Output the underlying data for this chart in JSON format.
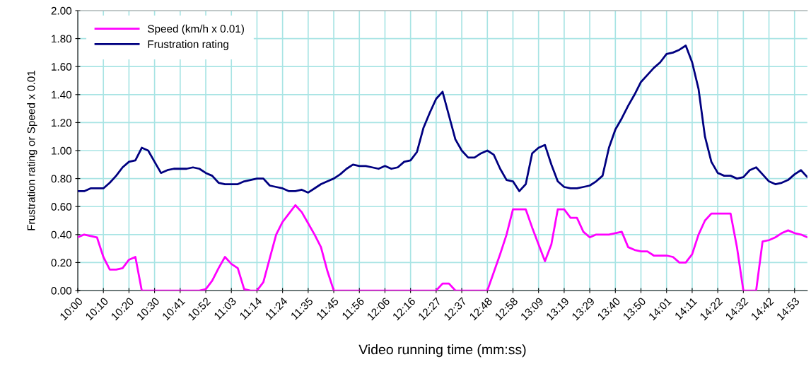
{
  "chart_data": {
    "type": "line",
    "xlabel": "Video running time (mm:ss)",
    "ylabel": "Frustration rating or Speed x 0.01",
    "categories": [
      "10:00",
      null,
      null,
      null,
      "10:10",
      null,
      null,
      null,
      "10:20",
      null,
      null,
      null,
      "10:30",
      null,
      null,
      null,
      "10:41",
      null,
      null,
      null,
      "10:52",
      null,
      null,
      null,
      "11:03",
      null,
      null,
      null,
      "11:14",
      null,
      null,
      null,
      "11:24",
      null,
      null,
      null,
      "11:35",
      null,
      null,
      null,
      "11:45",
      null,
      null,
      null,
      "11:56",
      null,
      null,
      null,
      "12:06",
      null,
      null,
      null,
      "12:16",
      null,
      null,
      null,
      "12:27",
      null,
      null,
      null,
      "12:37",
      null,
      null,
      null,
      "12:48",
      null,
      null,
      null,
      "12:58",
      null,
      null,
      null,
      "13:09",
      null,
      null,
      null,
      "13:19",
      null,
      null,
      null,
      "13:29",
      null,
      null,
      null,
      "13:40",
      null,
      null,
      null,
      "13:50",
      null,
      null,
      null,
      "14:01",
      null,
      null,
      null,
      "14:11",
      null,
      null,
      null,
      "14:22",
      null,
      null,
      null,
      "14:32",
      null,
      null,
      null,
      "14:42",
      null,
      null,
      null,
      "14:53",
      null,
      null
    ],
    "series": [
      {
        "name": "Speed (km/h x 0.01)",
        "color": "#ff00ff",
        "values": [
          0.38,
          0.4,
          0.39,
          0.38,
          0.24,
          0.15,
          0.15,
          0.16,
          0.22,
          0.24,
          0,
          0,
          0,
          0,
          0,
          0,
          0,
          0,
          0,
          0,
          0.01,
          0.07,
          0.16,
          0.24,
          0.19,
          0.16,
          0.01,
          0,
          0,
          0.06,
          0.23,
          0.4,
          0.49,
          0.55,
          0.61,
          0.56,
          0.48,
          0.4,
          0.31,
          0.14,
          0,
          0,
          0,
          0,
          0,
          0,
          0,
          0,
          0,
          0,
          0,
          0,
          0,
          0,
          0,
          0,
          0,
          0.05,
          0.05,
          0,
          0,
          0,
          0,
          0,
          0,
          0.13,
          0.26,
          0.4,
          0.58,
          0.58,
          0.58,
          0.45,
          0.33,
          0.21,
          0.33,
          0.58,
          0.58,
          0.52,
          0.52,
          0.42,
          0.38,
          0.4,
          0.4,
          0.4,
          0.41,
          0.42,
          0.31,
          0.29,
          0.28,
          0.28,
          0.25,
          0.25,
          0.25,
          0.24,
          0.2,
          0.2,
          0.26,
          0.4,
          0.5,
          0.55,
          0.55,
          0.55,
          0.55,
          0.31,
          0,
          0,
          0,
          0.35,
          0.36,
          0.38,
          0.41,
          0.43,
          0.41,
          0.4,
          0.38
        ]
      },
      {
        "name": "Frustration rating",
        "color": "#000080",
        "values": [
          0.71,
          0.71,
          0.73,
          0.73,
          0.73,
          0.77,
          0.82,
          0.88,
          0.92,
          0.93,
          1.02,
          1.0,
          0.92,
          0.84,
          0.86,
          0.87,
          0.87,
          0.87,
          0.88,
          0.87,
          0.84,
          0.82,
          0.77,
          0.76,
          0.76,
          0.76,
          0.78,
          0.79,
          0.8,
          0.8,
          0.75,
          0.74,
          0.73,
          0.71,
          0.71,
          0.72,
          0.7,
          0.73,
          0.76,
          0.78,
          0.8,
          0.83,
          0.87,
          0.9,
          0.89,
          0.89,
          0.88,
          0.87,
          0.89,
          0.87,
          0.88,
          0.92,
          0.93,
          0.99,
          1.16,
          1.27,
          1.37,
          1.42,
          1.25,
          1.08,
          1.0,
          0.95,
          0.95,
          0.98,
          1.0,
          0.97,
          0.87,
          0.79,
          0.78,
          0.71,
          0.76,
          0.98,
          1.02,
          1.04,
          0.9,
          0.78,
          0.74,
          0.73,
          0.73,
          0.74,
          0.75,
          0.78,
          0.82,
          1.02,
          1.15,
          1.23,
          1.32,
          1.4,
          1.49,
          1.54,
          1.59,
          1.63,
          1.69,
          1.7,
          1.72,
          1.75,
          1.63,
          1.44,
          1.1,
          0.92,
          0.84,
          0.82,
          0.82,
          0.8,
          0.81,
          0.86,
          0.88,
          0.83,
          0.78,
          0.76,
          0.77,
          0.79,
          0.83,
          0.86,
          0.81
        ]
      }
    ],
    "ylim": [
      0,
      2
    ],
    "yticks": [
      {
        "value": 0,
        "label": "0.00"
      },
      {
        "value": 0.2,
        "label": "0.20"
      },
      {
        "value": 0.4,
        "label": "0.40"
      },
      {
        "value": 0.6,
        "label": "0.60"
      },
      {
        "value": 0.8,
        "label": "0.80"
      },
      {
        "value": 1.0,
        "label": "1.00"
      },
      {
        "value": 1.2,
        "label": "1.20"
      },
      {
        "value": 1.4,
        "label": "1.40"
      },
      {
        "value": 1.6,
        "label": "1.60"
      },
      {
        "value": 1.8,
        "label": "1.80"
      },
      {
        "value": 2.0,
        "label": "2.00"
      }
    ],
    "grid": true,
    "legend": "top left",
    "marker": "none",
    "line_style": "solid"
  }
}
